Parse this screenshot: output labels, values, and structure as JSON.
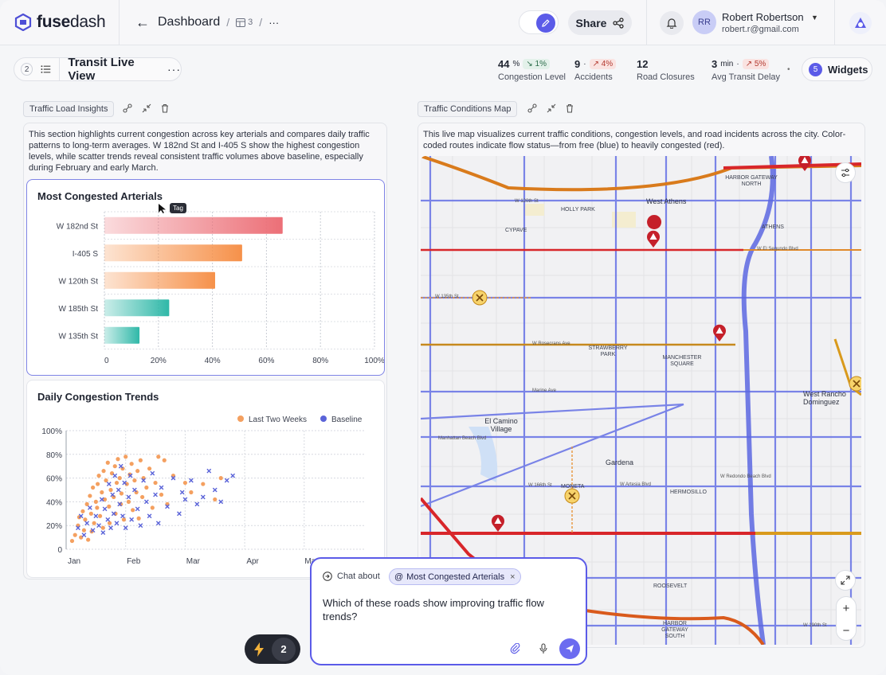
{
  "app": {
    "name_bold": "fuse",
    "name_light": "dash"
  },
  "header": {
    "breadcrumb": "Dashboard",
    "sub_count": "3",
    "more": "···",
    "share_label": "Share",
    "user": {
      "initials": "RR",
      "name": "Robert Robertson",
      "email": "robert.r@gmail.com"
    }
  },
  "view": {
    "count": "2",
    "title": "Transit Live View"
  },
  "kpis": [
    {
      "value": "44",
      "unit": "%",
      "delta": "1%",
      "delta_dir": "down",
      "label": "Congestion Level"
    },
    {
      "value": "9",
      "unit": "",
      "delta": "4%",
      "delta_dir": "up",
      "label": "Accidents"
    },
    {
      "value": "12",
      "unit": "",
      "delta": "",
      "delta_dir": "",
      "label": "Road Closures"
    },
    {
      "value": "3",
      "unit": "min",
      "delta": "5%",
      "delta_dir": "up",
      "label": "Avg Transit Delay"
    }
  ],
  "widgets": {
    "count": "5",
    "label": "Widgets"
  },
  "left_panel": {
    "tag": "Traffic Load Insights",
    "description": "This section highlights current congestion across key arterials and compares daily traffic patterns to long-term averages. W 182nd St and I-405 S show the highest congestion levels, while scatter trends reveal consistent traffic volumes above baseline, especially during February and early March."
  },
  "right_panel": {
    "tag": "Traffic Conditions Map",
    "description": "This live map visualizes current traffic conditions, congestion levels, and road incidents across the city. Color-coded routes indicate flow status—from free (blue) to heavily congested (red)."
  },
  "cursor_tag": "Tag",
  "chart_data": [
    {
      "type": "bar",
      "orientation": "horizontal",
      "title": "Most Congested Arterials",
      "categories": [
        "W 182nd St",
        "I-405 S",
        "W 120th St",
        "W 185th St",
        "W 135th St"
      ],
      "values": [
        66,
        51,
        41,
        24,
        13
      ],
      "colors": [
        "#ec6f77",
        "#f6914a",
        "#f6914a",
        "#2fb8a8",
        "#2fb8a8"
      ],
      "xlim": [
        0,
        100
      ],
      "xticks": [
        "0",
        "20%",
        "40%",
        "60%",
        "80%",
        "100%"
      ],
      "grid": true
    },
    {
      "type": "scatter",
      "title": "Daily Congestion Trends",
      "ylim": [
        0,
        100
      ],
      "yticks": [
        "0",
        "20%",
        "40%",
        "60%",
        "80%",
        "100%"
      ],
      "xticks": [
        "Jan",
        "Feb",
        "Mar",
        "Apr",
        "May"
      ],
      "legend_position": "top-right",
      "series": [
        {
          "name": "Last Two Weeks",
          "marker": "circle",
          "color": "#f4a060",
          "points": [
            [
              0.1,
              7
            ],
            [
              0.15,
              12
            ],
            [
              0.2,
              20
            ],
            [
              0.22,
              27
            ],
            [
              0.25,
              10
            ],
            [
              0.28,
              32
            ],
            [
              0.3,
              16
            ],
            [
              0.32,
              25
            ],
            [
              0.35,
              38
            ],
            [
              0.37,
              8
            ],
            [
              0.4,
              45
            ],
            [
              0.42,
              30
            ],
            [
              0.43,
              15
            ],
            [
              0.45,
              52
            ],
            [
              0.47,
              22
            ],
            [
              0.5,
              40
            ],
            [
              0.52,
              35
            ],
            [
              0.53,
              55
            ],
            [
              0.55,
              62
            ],
            [
              0.57,
              28
            ],
            [
              0.6,
              48
            ],
            [
              0.62,
              18
            ],
            [
              0.63,
              66
            ],
            [
              0.65,
              42
            ],
            [
              0.67,
              58
            ],
            [
              0.7,
              73
            ],
            [
              0.72,
              36
            ],
            [
              0.73,
              22
            ],
            [
              0.75,
              50
            ],
            [
              0.77,
              64
            ],
            [
              0.8,
              44
            ],
            [
              0.82,
              70
            ],
            [
              0.83,
              30
            ],
            [
              0.85,
              56
            ],
            [
              0.87,
              76
            ],
            [
              0.9,
              60
            ],
            [
              0.92,
              38
            ],
            [
              0.93,
              47
            ],
            [
              0.95,
              68
            ],
            [
              0.97,
              25
            ],
            [
              1.0,
              78
            ],
            [
              1.02,
              55
            ],
            [
              1.05,
              40
            ],
            [
              1.07,
              63
            ],
            [
              1.1,
              72
            ],
            [
              1.12,
              33
            ],
            [
              1.15,
              58
            ],
            [
              1.18,
              48
            ],
            [
              1.2,
              66
            ],
            [
              1.22,
              26
            ],
            [
              1.25,
              75
            ],
            [
              1.28,
              44
            ],
            [
              1.3,
              60
            ],
            [
              1.35,
              52
            ],
            [
              1.4,
              68
            ],
            [
              1.45,
              35
            ],
            [
              1.5,
              56
            ],
            [
              1.55,
              78
            ],
            [
              1.6,
              46
            ],
            [
              1.65,
              75
            ],
            [
              1.7,
              38
            ],
            [
              1.8,
              62
            ],
            [
              2.0,
              56
            ],
            [
              2.1,
              48
            ],
            [
              2.3,
              55
            ],
            [
              2.5,
              42
            ],
            [
              2.6,
              60
            ]
          ]
        },
        {
          "name": "Baseline",
          "marker": "x",
          "color": "#5a63d8",
          "points": [
            [
              0.2,
              18
            ],
            [
              0.25,
              28
            ],
            [
              0.3,
              12
            ],
            [
              0.35,
              22
            ],
            [
              0.4,
              35
            ],
            [
              0.45,
              16
            ],
            [
              0.5,
              28
            ],
            [
              0.55,
              20
            ],
            [
              0.6,
              42
            ],
            [
              0.62,
              14
            ],
            [
              0.65,
              34
            ],
            [
              0.7,
              25
            ],
            [
              0.72,
              55
            ],
            [
              0.75,
              18
            ],
            [
              0.78,
              46
            ],
            [
              0.8,
              30
            ],
            [
              0.82,
              62
            ],
            [
              0.85,
              22
            ],
            [
              0.88,
              50
            ],
            [
              0.9,
              38
            ],
            [
              0.92,
              70
            ],
            [
              0.95,
              28
            ],
            [
              0.98,
              56
            ],
            [
              1.0,
              18
            ],
            [
              1.05,
              44
            ],
            [
              1.08,
              62
            ],
            [
              1.1,
              25
            ],
            [
              1.15,
              50
            ],
            [
              1.2,
              34
            ],
            [
              1.25,
              20
            ],
            [
              1.3,
              58
            ],
            [
              1.35,
              40
            ],
            [
              1.4,
              28
            ],
            [
              1.45,
              64
            ],
            [
              1.5,
              46
            ],
            [
              1.55,
              22
            ],
            [
              1.6,
              52
            ],
            [
              1.7,
              36
            ],
            [
              1.8,
              60
            ],
            [
              1.9,
              30
            ],
            [
              1.95,
              48
            ],
            [
              2.0,
              42
            ],
            [
              2.1,
              58
            ],
            [
              2.2,
              38
            ],
            [
              2.3,
              44
            ],
            [
              2.4,
              66
            ],
            [
              2.5,
              50
            ],
            [
              2.6,
              40
            ],
            [
              2.7,
              58
            ],
            [
              2.8,
              62
            ]
          ]
        }
      ]
    }
  ],
  "map": {
    "labels": [
      "HARBOR GATEWAY NORTH",
      "West Athens",
      "HOLLY PARK",
      "CYPAVE",
      "ATHENS",
      "W El Segundo Blvd",
      "W 135th St",
      "W 120th St",
      "STRAWBERRY PARK",
      "MANCHESTER SQUARE",
      "W Rosecrans Ave",
      "Marine Ave",
      "West Rancho Dominguez",
      "El Camino Village",
      "Manhattan Beach Blvd",
      "Gardena",
      "MONETA",
      "W 166th St",
      "HERMOSILLO",
      "W Redondo Beach Blvd",
      "ROOSEVELT",
      "HARBOR GATEWAY SOUTH",
      "W Artesia Blvd",
      "W 190th St"
    ]
  },
  "chat": {
    "label": "Chat about",
    "chip": "Most Congested Arterials",
    "question": "Which of these roads show improving traffic flow trends?"
  },
  "bolt": {
    "count": "2"
  }
}
